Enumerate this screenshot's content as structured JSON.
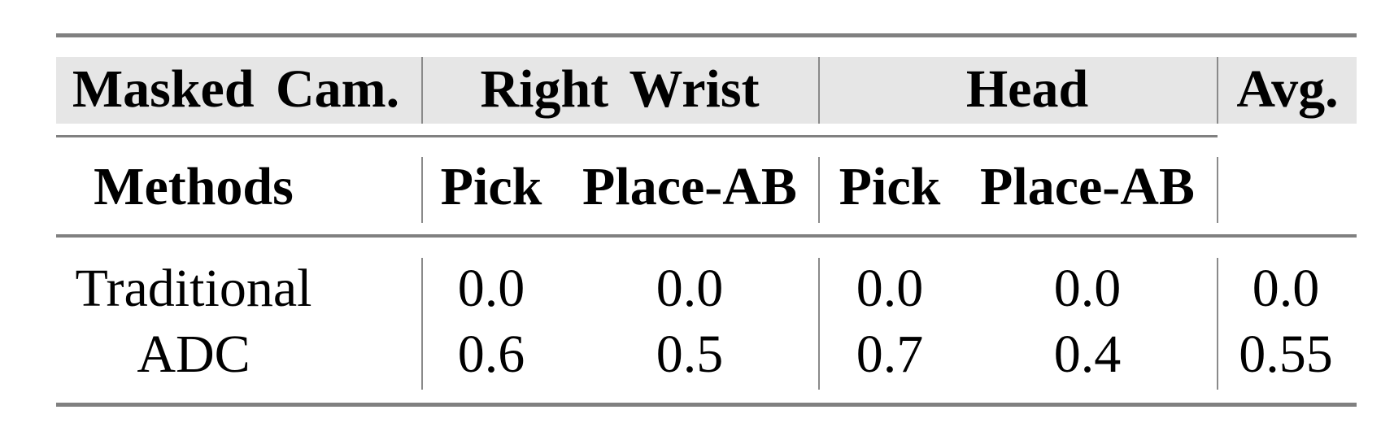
{
  "table": {
    "header_row1": {
      "label": "Masked Cam.",
      "groups": [
        "Right Wrist",
        "Head"
      ],
      "avg": "Avg."
    },
    "header_row2": {
      "label": "Methods",
      "subcolumns": [
        "Pick",
        "Place-AB",
        "Pick",
        "Place-AB"
      ]
    },
    "rows": [
      {
        "method": "Traditional",
        "values": [
          "0.0",
          "0.0",
          "0.0",
          "0.0",
          "0.0"
        ]
      },
      {
        "method": "ADC",
        "values": [
          "0.6",
          "0.5",
          "0.7",
          "0.4",
          "0.55"
        ]
      }
    ],
    "colors": {
      "header_band": "#e6e6e6",
      "rules": "#808080"
    }
  }
}
